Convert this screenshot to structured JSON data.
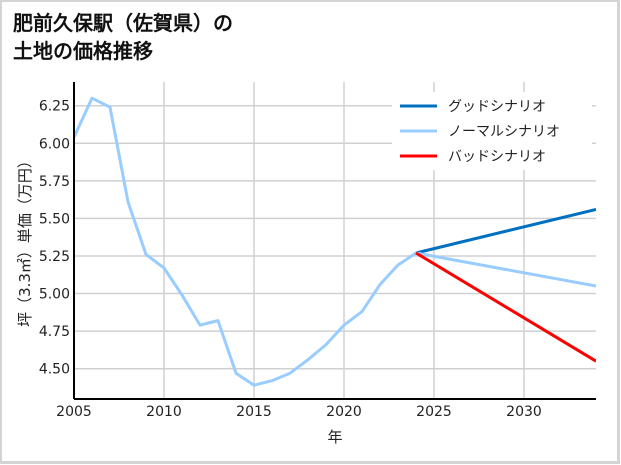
{
  "title_line1": "肥前久保駅（佐賀県）の",
  "title_line2": "土地の価格推移",
  "chart_data": {
    "type": "line",
    "title": "肥前久保駅（佐賀県）の土地の価格推移",
    "xlabel": "年",
    "ylabel": "坪（3.3㎡）単価（万円）",
    "xlim": [
      2005,
      2034
    ],
    "ylim": [
      4.32,
      6.4
    ],
    "grid": true,
    "legend_position": "upper right",
    "x_ticks": [
      2005,
      2010,
      2015,
      2020,
      2025,
      2030
    ],
    "y_ticks": [
      4.5,
      4.75,
      5.0,
      5.25,
      5.5,
      5.75,
      6.0,
      6.25
    ],
    "y_tick_labels": [
      "4.50",
      "4.75",
      "5.00",
      "5.25",
      "5.50",
      "5.75",
      "6.00",
      "6.25"
    ],
    "historical": {
      "name": "ノーマルシナリオ",
      "color": "#99ccff",
      "x": [
        2005,
        2006,
        2007,
        2008,
        2009,
        2010,
        2011,
        2012,
        2013,
        2014,
        2015,
        2016,
        2017,
        2018,
        2019,
        2020,
        2021,
        2022,
        2023,
        2024
      ],
      "y": [
        6.04,
        6.3,
        6.24,
        5.61,
        5.26,
        5.17,
        4.99,
        4.79,
        4.82,
        4.47,
        4.39,
        4.42,
        4.47,
        4.56,
        4.66,
        4.79,
        4.88,
        5.06,
        5.19,
        5.27
      ]
    },
    "series": [
      {
        "name": "グッドシナリオ",
        "color": "#0070c0",
        "x": [
          2024,
          2034
        ],
        "y": [
          5.27,
          5.56
        ]
      },
      {
        "name": "ノーマルシナリオ",
        "color": "#99ccff",
        "x": [
          2024,
          2034
        ],
        "y": [
          5.27,
          5.05
        ]
      },
      {
        "name": "バッドシナリオ",
        "color": "#ff0000",
        "x": [
          2024,
          2034
        ],
        "y": [
          5.27,
          4.55
        ]
      }
    ]
  }
}
